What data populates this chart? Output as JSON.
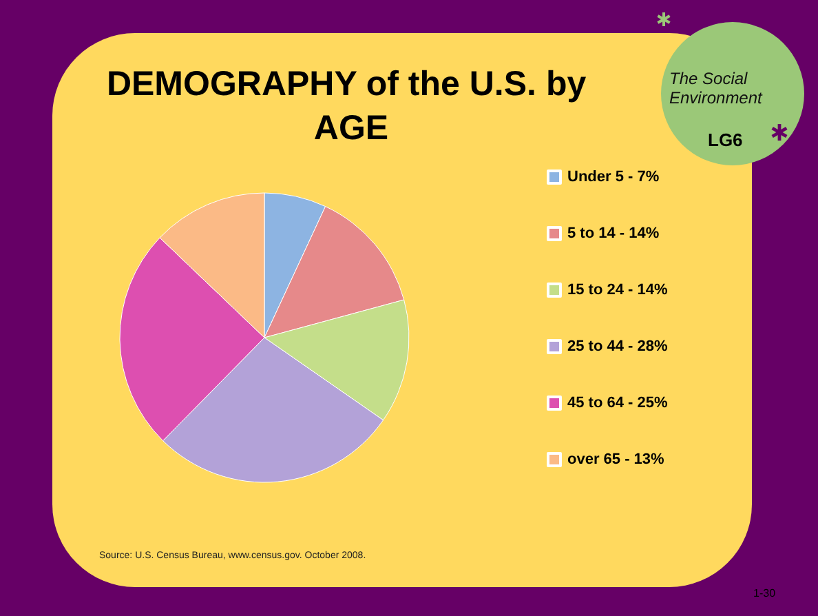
{
  "chart_data": {
    "type": "pie",
    "title": "DEMOGRAPHY of the U.S. by AGE",
    "categories": [
      "Under 5 - 7%",
      "5 to 14 - 14%",
      "15 to 24 - 14%",
      "25 to 44 - 28%",
      "45 to 64 - 25%",
      "over 65 - 13%"
    ],
    "values": [
      7,
      14,
      14,
      28,
      25,
      13
    ],
    "colors": [
      "#8db4e2",
      "#e6898a",
      "#c4de8a",
      "#b3a2d8",
      "#dd4fb0",
      "#fbba86"
    ],
    "legend": "right",
    "annotations": [
      "Source: U.S. Census Bureau, www.census.gov.  October 2008.",
      "1-30",
      "The Social Environment",
      "LG6"
    ]
  }
}
